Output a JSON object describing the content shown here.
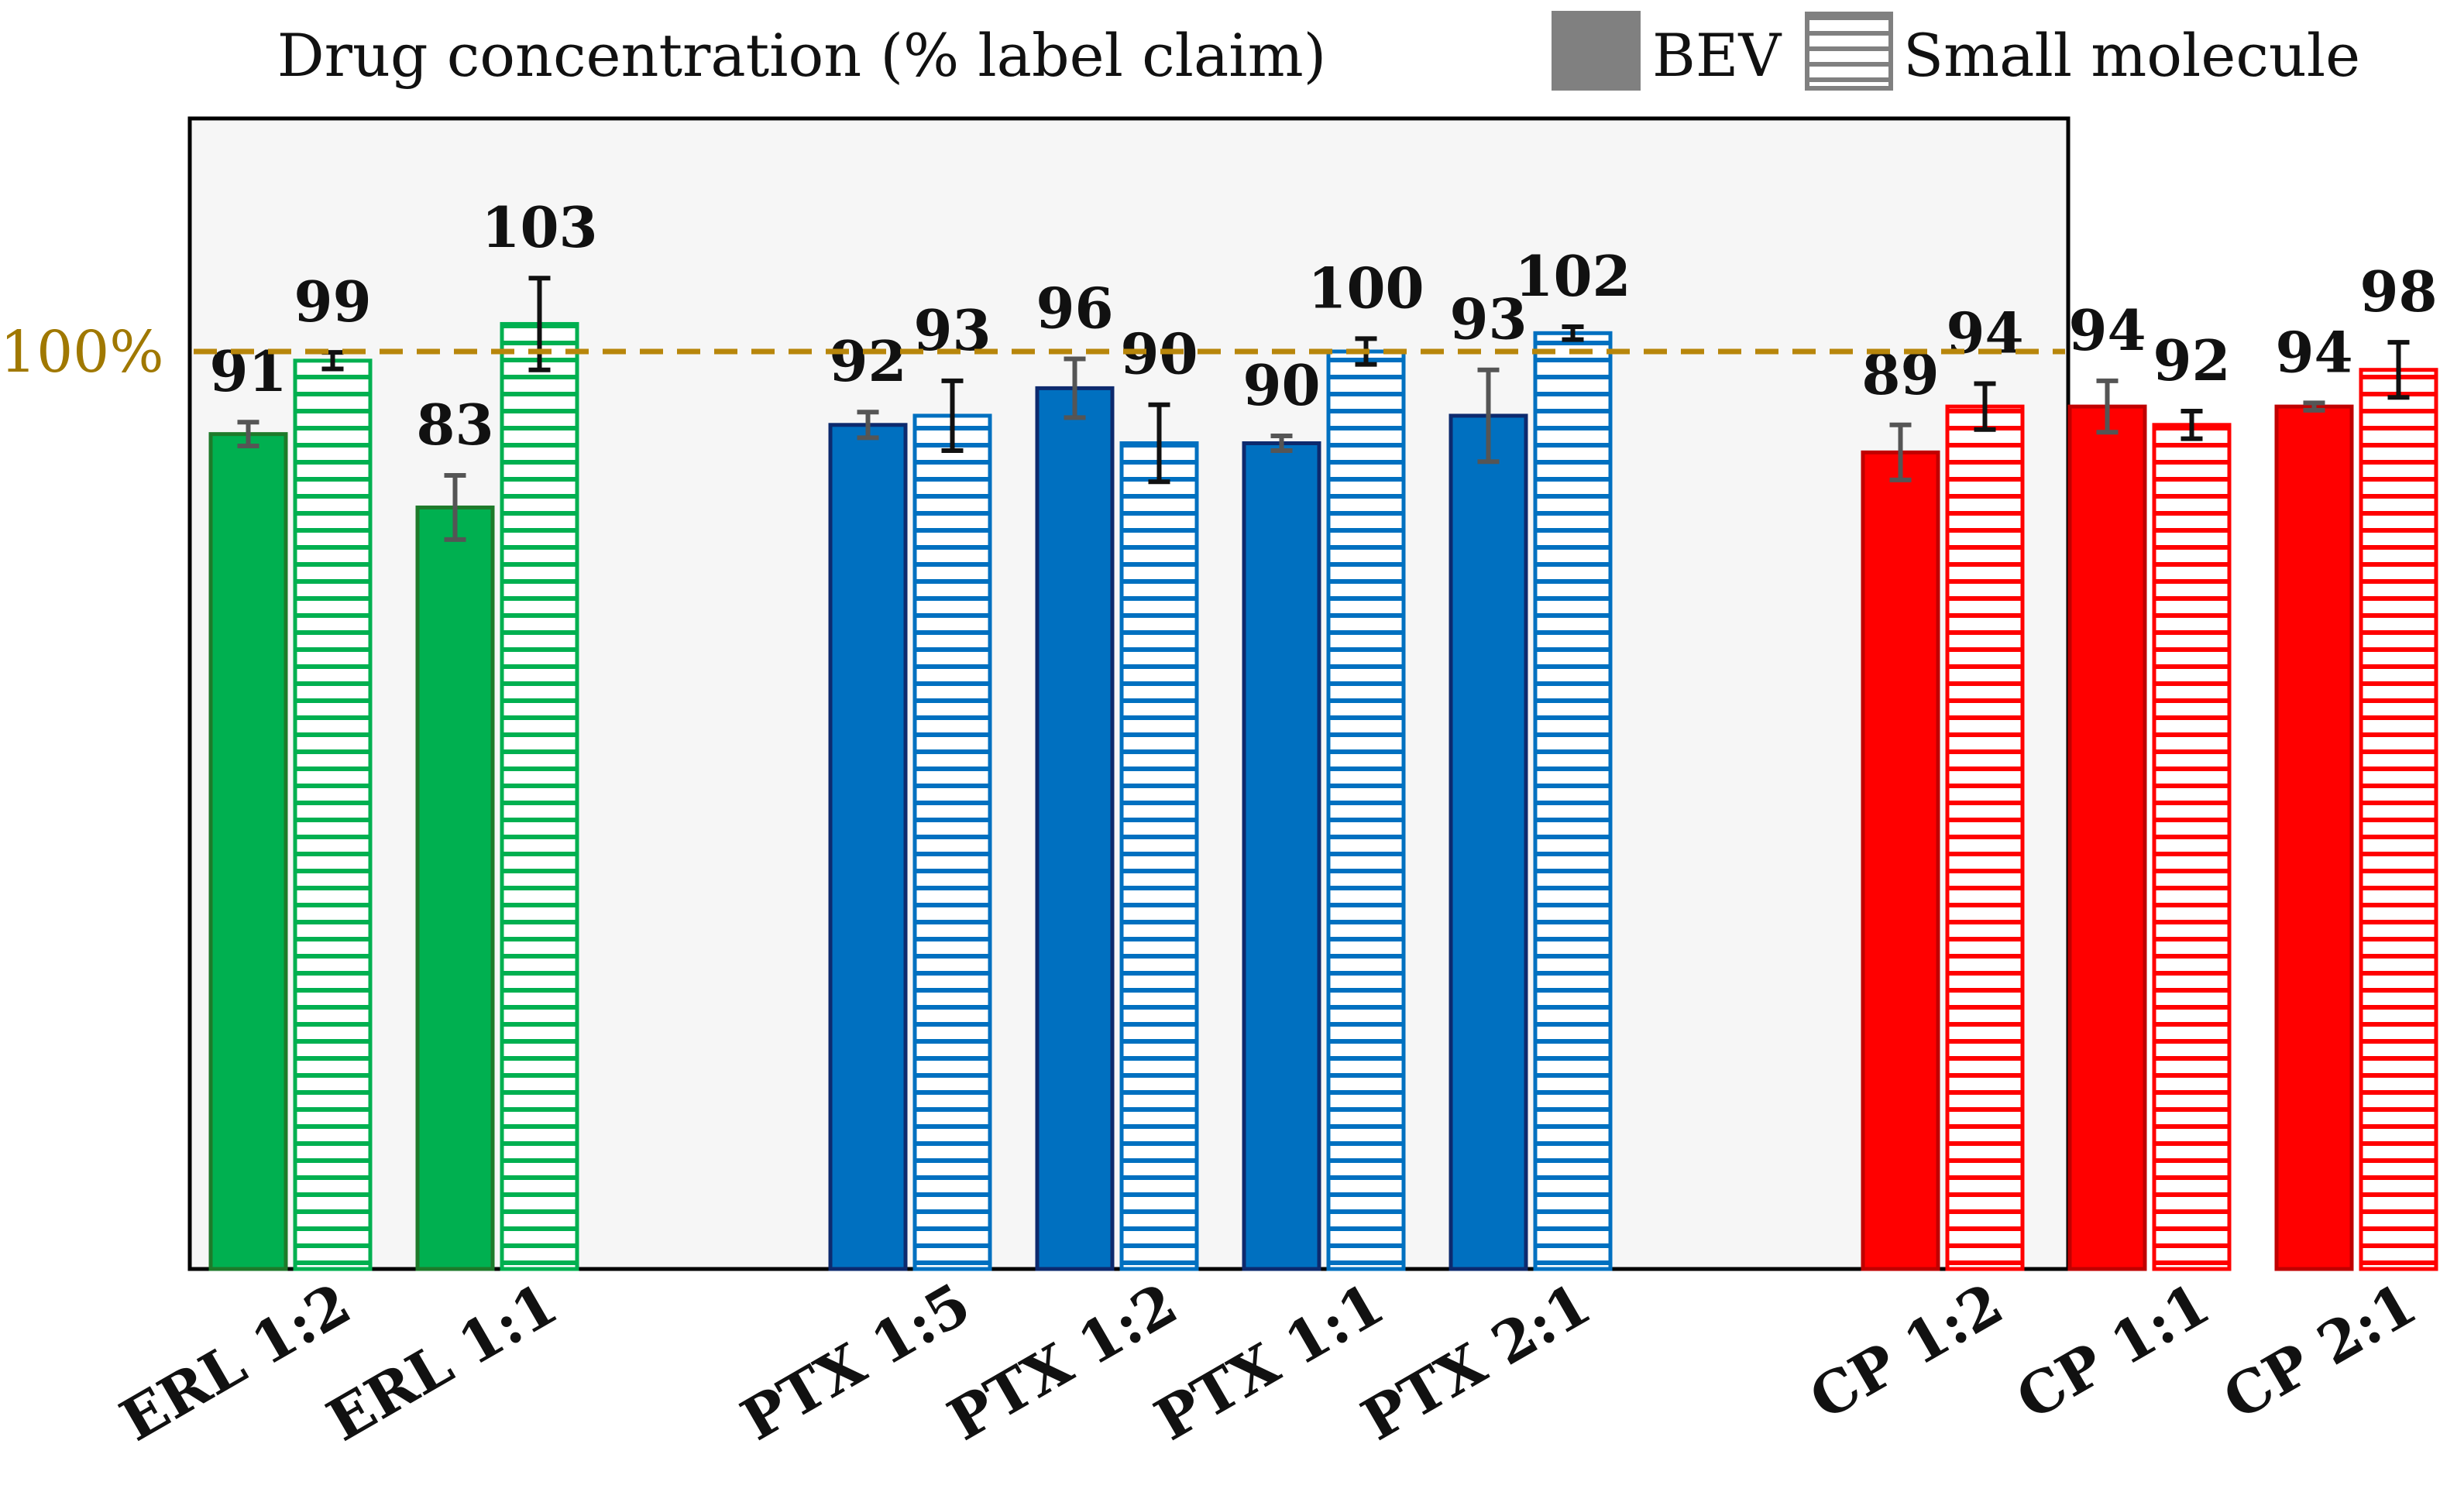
{
  "chart_data": {
    "type": "bar",
    "title": "Drug concentration (% label claim)",
    "xlabel": "",
    "ylabel": "",
    "ylim": [
      0,
      110
    ],
    "grid": false,
    "legend_position": "top-right",
    "legend": [
      {
        "name": "BEV",
        "style": "solid"
      },
      {
        "name": "Small molecule",
        "style": "striped"
      }
    ],
    "reference_line": {
      "value": 100,
      "label": "100%",
      "color": "#b8860b"
    },
    "groups": [
      {
        "name": "ERL",
        "color": "#00b050",
        "border": "#1e7a2a",
        "categories": [
          {
            "label": "ERL 1:2",
            "bev": 91,
            "bev_err": 1.3,
            "sm": 99,
            "sm_err": 0.9
          },
          {
            "label": "ERL 1:1",
            "bev": 83,
            "bev_err": 3.5,
            "sm": 103,
            "sm_err": 5.0
          }
        ]
      },
      {
        "name": "PTX",
        "color": "#0070c0",
        "border": "#0d2a6e",
        "categories": [
          {
            "label": "PTX 1:5",
            "bev": 92,
            "bev_err": 1.4,
            "sm": 93,
            "sm_err": 3.8
          },
          {
            "label": "PTX 1:2",
            "bev": 96,
            "bev_err": 3.2,
            "sm": 90,
            "sm_err": 4.2
          },
          {
            "label": "PTX 1:1",
            "bev": 90,
            "bev_err": 0.8,
            "sm": 100,
            "sm_err": 1.4
          },
          {
            "label": "PTX 2:1",
            "bev": 93,
            "bev_err": 5.0,
            "sm": 102,
            "sm_err": 0.7
          }
        ]
      },
      {
        "name": "CP",
        "color": "#ff0000",
        "border": "#c00000",
        "categories": [
          {
            "label": "CP 1:2",
            "bev": 89,
            "bev_err": 3.0,
            "sm": 94,
            "sm_err": 2.5
          },
          {
            "label": "CP 1:1",
            "bev": 94,
            "bev_err": 2.8,
            "sm": 92,
            "sm_err": 1.5
          },
          {
            "label": "CP 2:1",
            "bev": 94,
            "bev_err": 0.4,
            "sm": 98,
            "sm_err": 3.0
          }
        ]
      }
    ]
  }
}
